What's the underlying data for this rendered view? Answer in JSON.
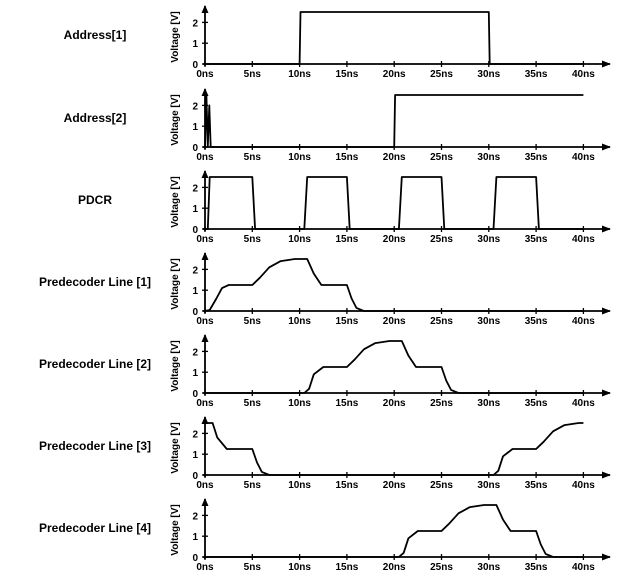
{
  "chart_data": [
    {
      "type": "line",
      "title": "Address[1]",
      "ylabel": "Voltage [V]",
      "xlabel": "",
      "xlim": [
        0,
        40
      ],
      "ylim": [
        0,
        2.5
      ],
      "x_ticks": [
        "0ns",
        "5ns",
        "10ns",
        "15ns",
        "20ns",
        "25ns",
        "30ns",
        "35ns",
        "40ns"
      ],
      "y_ticks": [
        "0",
        "1",
        "2"
      ],
      "series": [
        {
          "x": [
            0,
            10,
            10.1,
            30,
            30.1,
            40
          ],
          "y": [
            0,
            0,
            2.5,
            2.5,
            0,
            0
          ]
        }
      ]
    },
    {
      "type": "line",
      "title": "Address[2]",
      "ylabel": "Voltage [V]",
      "xlabel": "",
      "xlim": [
        0,
        40
      ],
      "ylim": [
        0,
        2.5
      ],
      "x_ticks": [
        "0ns",
        "5ns",
        "10ns",
        "15ns",
        "20ns",
        "25ns",
        "30ns",
        "35ns",
        "40ns"
      ],
      "y_ticks": [
        "0",
        "1",
        "2"
      ],
      "series": [
        {
          "x": [
            0,
            0.15,
            0.3,
            0.45,
            0.6,
            20,
            20.1,
            40
          ],
          "y": [
            0,
            2.5,
            0,
            2.0,
            0,
            0,
            2.5,
            2.5
          ]
        }
      ]
    },
    {
      "type": "line",
      "title": "PDCR",
      "ylabel": "Voltage [V]",
      "xlabel": "",
      "xlim": [
        0,
        40
      ],
      "ylim": [
        0,
        2.5
      ],
      "x_ticks": [
        "0ns",
        "5ns",
        "10ns",
        "15ns",
        "20ns",
        "25ns",
        "30ns",
        "35ns",
        "40ns"
      ],
      "y_ticks": [
        "0",
        "1",
        "2"
      ],
      "series": [
        {
          "x": [
            0,
            0.3,
            0.5,
            5,
            5.3,
            10.5,
            10.8,
            15,
            15.3,
            20.5,
            20.8,
            25,
            25.3,
            30.5,
            30.8,
            35,
            35.3,
            40
          ],
          "y": [
            0,
            0,
            2.5,
            2.5,
            0,
            0,
            2.5,
            2.5,
            0,
            0,
            2.5,
            2.5,
            0,
            0,
            2.5,
            2.5,
            0,
            0
          ]
        }
      ]
    },
    {
      "type": "line",
      "title": "Predecoder Line [1]",
      "ylabel": "Voltage [V]",
      "xlabel": "",
      "xlim": [
        0,
        40
      ],
      "ylim": [
        0,
        2.5
      ],
      "x_ticks": [
        "0ns",
        "5ns",
        "10ns",
        "15ns",
        "20ns",
        "25ns",
        "30ns",
        "35ns",
        "40ns"
      ],
      "y_ticks": [
        "0",
        "1",
        "2"
      ],
      "series": [
        {
          "x": [
            0,
            0.5,
            1.2,
            1.8,
            2.5,
            5,
            5.8,
            6.8,
            8,
            9.5,
            10.8,
            11.5,
            12.3,
            15,
            15.5,
            16,
            16.8,
            40
          ],
          "y": [
            0,
            0.05,
            0.6,
            1.1,
            1.25,
            1.25,
            1.6,
            2.1,
            2.4,
            2.5,
            2.5,
            1.8,
            1.25,
            1.25,
            0.6,
            0.15,
            0,
            0
          ]
        }
      ]
    },
    {
      "type": "line",
      "title": "Predecoder Line [2]",
      "ylabel": "Voltage [V]",
      "xlabel": "",
      "xlim": [
        0,
        40
      ],
      "ylim": [
        0,
        2.5
      ],
      "x_ticks": [
        "0ns",
        "5ns",
        "10ns",
        "15ns",
        "20ns",
        "25ns",
        "30ns",
        "35ns",
        "40ns"
      ],
      "y_ticks": [
        "0",
        "1",
        "2"
      ],
      "series": [
        {
          "x": [
            0,
            10.5,
            11,
            11.5,
            12.5,
            15,
            15.8,
            16.8,
            18,
            19.5,
            20.8,
            21.5,
            22.3,
            25,
            25.5,
            26,
            26.8,
            40
          ],
          "y": [
            0,
            0,
            0.2,
            0.9,
            1.25,
            1.25,
            1.6,
            2.1,
            2.4,
            2.5,
            2.5,
            1.8,
            1.25,
            1.25,
            0.6,
            0.15,
            0,
            0
          ]
        }
      ]
    },
    {
      "type": "line",
      "title": "Predecoder Line [3]",
      "ylabel": "Voltage [V]",
      "xlabel": "",
      "xlim": [
        0,
        40
      ],
      "ylim": [
        0,
        2.5
      ],
      "x_ticks": [
        "0ns",
        "5ns",
        "10ns",
        "15ns",
        "20ns",
        "25ns",
        "30ns",
        "35ns",
        "40ns"
      ],
      "y_ticks": [
        "0",
        "1",
        "2"
      ],
      "series": [
        {
          "x": [
            0,
            0.8,
            1.3,
            2.3,
            5,
            5.5,
            6,
            6.8,
            30.5,
            31,
            31.5,
            32.5,
            35,
            35.8,
            36.8,
            38,
            39.5,
            40
          ],
          "y": [
            2.5,
            2.5,
            1.8,
            1.25,
            1.25,
            0.6,
            0.15,
            0,
            0,
            0.2,
            0.9,
            1.25,
            1.25,
            1.6,
            2.1,
            2.4,
            2.5,
            2.5
          ]
        }
      ]
    },
    {
      "type": "line",
      "title": "Predecoder Line [4]",
      "ylabel": "Voltage [V]",
      "xlabel": "",
      "xlim": [
        0,
        40
      ],
      "ylim": [
        0,
        2.5
      ],
      "x_ticks": [
        "0ns",
        "5ns",
        "10ns",
        "15ns",
        "20ns",
        "25ns",
        "30ns",
        "35ns",
        "40ns"
      ],
      "y_ticks": [
        "0",
        "1",
        "2"
      ],
      "series": [
        {
          "x": [
            0,
            20.5,
            21,
            21.5,
            22.5,
            25,
            25.8,
            26.8,
            28,
            29.5,
            30.8,
            31.5,
            32.3,
            35,
            35.5,
            36,
            36.8,
            40
          ],
          "y": [
            0,
            0,
            0.2,
            0.9,
            1.25,
            1.25,
            1.6,
            2.1,
            2.4,
            2.5,
            2.5,
            1.8,
            1.25,
            1.25,
            0.6,
            0.15,
            0,
            0
          ]
        }
      ]
    }
  ]
}
